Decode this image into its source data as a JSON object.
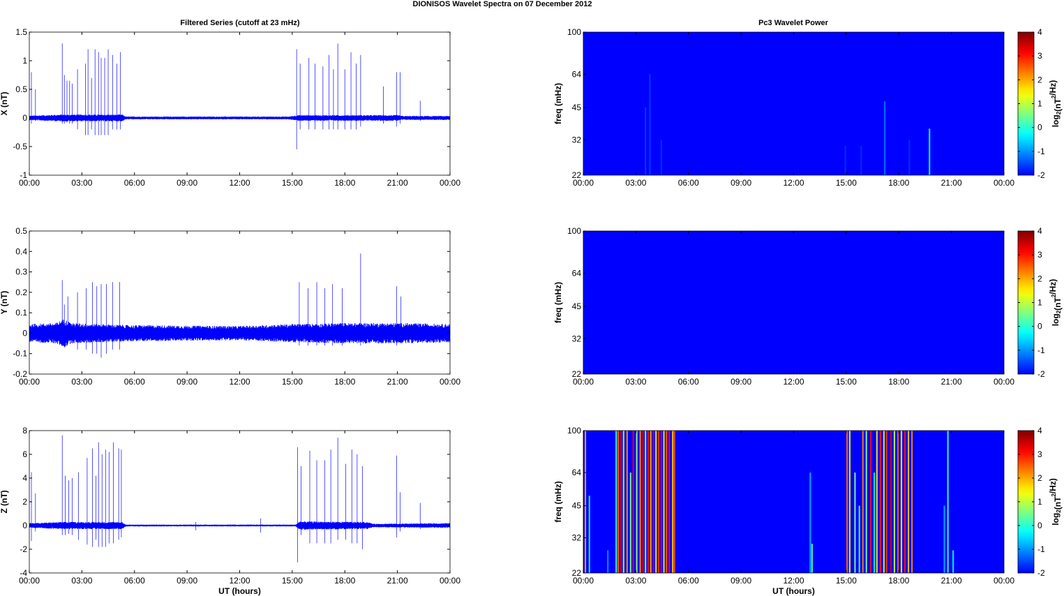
{
  "figure": {
    "title": "DIONISOS Wavelet Spectra on 07 December  2012",
    "left_column_title": "Filtered Series (cutoff at 23 mHz)",
    "right_column_title": "Pc3 Wavelet Power"
  },
  "chart_data": [
    {
      "type": "line",
      "name": "X-filtered-series",
      "title": "Filtered Series (cutoff at 23 mHz)",
      "xlabel": "",
      "ylabel": "X (nT)",
      "xlim": [
        "00:00",
        "24:00"
      ],
      "ylim": [
        -1,
        1.5
      ],
      "x_ticks": [
        "00:00",
        "03:00",
        "06:00",
        "09:00",
        "12:00",
        "15:00",
        "18:00",
        "21:00",
        "00:00"
      ],
      "y_ticks": [
        "-1",
        "-0.5",
        "0",
        "0.5",
        "1",
        "1.5"
      ],
      "y_tick_values": [
        -1,
        -0.5,
        0,
        0.5,
        1,
        1.5
      ],
      "color": "#0000ff",
      "noise_band": [
        {
          "t": 0.0,
          "amp": 0.04
        },
        {
          "t": 1.8,
          "amp": 0.06
        },
        {
          "t": 5.3,
          "amp": 0.06
        },
        {
          "t": 5.5,
          "amp": 0.025
        },
        {
          "t": 14.8,
          "amp": 0.025
        },
        {
          "t": 15.3,
          "amp": 0.05
        },
        {
          "t": 21.0,
          "amp": 0.05
        },
        {
          "t": 21.3,
          "amp": 0.035
        },
        {
          "t": 24.0,
          "amp": 0.035
        }
      ],
      "spikes": [
        {
          "t": 0.12,
          "hi": 0.8,
          "lo": -0.1
        },
        {
          "t": 0.35,
          "hi": 0.5,
          "lo": -0.05
        },
        {
          "t": 1.88,
          "hi": 1.3,
          "lo": -0.1
        },
        {
          "t": 2.0,
          "hi": 0.75,
          "lo": -0.1
        },
        {
          "t": 2.15,
          "hi": 0.65,
          "lo": -0.08
        },
        {
          "t": 2.3,
          "hi": 0.65,
          "lo": -0.1
        },
        {
          "t": 2.45,
          "hi": 0.6,
          "lo": -0.1
        },
        {
          "t": 2.75,
          "hi": 0.85,
          "lo": -0.2
        },
        {
          "t": 3.2,
          "hi": 0.95,
          "lo": -0.3
        },
        {
          "t": 3.35,
          "hi": 1.2,
          "lo": -0.3
        },
        {
          "t": 3.55,
          "hi": 0.7,
          "lo": -0.2
        },
        {
          "t": 3.75,
          "hi": 1.2,
          "lo": -0.3
        },
        {
          "t": 3.95,
          "hi": 1.15,
          "lo": -0.3
        },
        {
          "t": 4.1,
          "hi": 1.05,
          "lo": -0.3
        },
        {
          "t": 4.3,
          "hi": 1.05,
          "lo": -0.3
        },
        {
          "t": 4.5,
          "hi": 1.2,
          "lo": -0.3
        },
        {
          "t": 4.75,
          "hi": 1.1,
          "lo": -0.2
        },
        {
          "t": 5.0,
          "hi": 0.95,
          "lo": -0.2
        },
        {
          "t": 5.2,
          "hi": 1.15,
          "lo": -0.2
        },
        {
          "t": 15.25,
          "hi": 1.2,
          "lo": -0.55
        },
        {
          "t": 15.45,
          "hi": 0.95,
          "lo": -0.2
        },
        {
          "t": 15.95,
          "hi": 1.05,
          "lo": -0.2
        },
        {
          "t": 16.3,
          "hi": 0.95,
          "lo": -0.2
        },
        {
          "t": 16.75,
          "hi": 0.9,
          "lo": -0.2
        },
        {
          "t": 17.1,
          "hi": 1.1,
          "lo": -0.2
        },
        {
          "t": 17.35,
          "hi": 0.85,
          "lo": -0.2
        },
        {
          "t": 17.6,
          "hi": 1.3,
          "lo": -0.2
        },
        {
          "t": 18.0,
          "hi": 0.85,
          "lo": -0.2
        },
        {
          "t": 18.35,
          "hi": 1.15,
          "lo": -0.2
        },
        {
          "t": 18.65,
          "hi": 0.95,
          "lo": -0.2
        },
        {
          "t": 18.9,
          "hi": 1.1,
          "lo": -0.15
        },
        {
          "t": 20.2,
          "hi": 0.55,
          "lo": -0.1
        },
        {
          "t": 20.95,
          "hi": 0.8,
          "lo": -0.15
        },
        {
          "t": 21.15,
          "hi": 0.8,
          "lo": -0.1
        },
        {
          "t": 22.3,
          "hi": 0.3,
          "lo": -0.05
        }
      ]
    },
    {
      "type": "heatmap",
      "name": "X-wavelet-power",
      "title": "Pc3 Wavelet Power",
      "xlabel": "",
      "ylabel": "freq (mHz)",
      "xlim": [
        "00:00",
        "24:00"
      ],
      "ylim": [
        22,
        100
      ],
      "y_scale": "log",
      "x_ticks": [
        "00:00",
        "03:00",
        "06:00",
        "09:00",
        "12:00",
        "15:00",
        "18:00",
        "21:00",
        "00:00"
      ],
      "y_ticks": [
        "22",
        "32",
        "45",
        "64",
        "100"
      ],
      "y_tick_values": [
        22,
        32,
        45,
        64,
        100
      ],
      "background_level": -2,
      "colorbar": {
        "label": "log2(nT2/Hz)",
        "range": [
          -2,
          4
        ],
        "ticks": [
          -2,
          -1,
          0,
          1,
          2,
          3,
          4
        ]
      },
      "stripes": [
        {
          "t": 3.55,
          "f_top": 45,
          "level": -1.6
        },
        {
          "t": 3.8,
          "f_top": 64,
          "level": -1.6
        },
        {
          "t": 4.45,
          "f_top": 32,
          "level": -1.7
        },
        {
          "t": 14.95,
          "f_top": 30,
          "level": -1.7
        },
        {
          "t": 15.85,
          "f_top": 30,
          "level": -1.7
        },
        {
          "t": 17.2,
          "f_top": 48,
          "level": -1.2
        },
        {
          "t": 18.6,
          "f_top": 32,
          "level": -1.7
        },
        {
          "t": 19.75,
          "f_top": 36,
          "level": -0.2
        }
      ]
    },
    {
      "type": "line",
      "name": "Y-filtered-series",
      "title": "",
      "xlabel": "",
      "ylabel": "Y (nT)",
      "xlim": [
        "00:00",
        "24:00"
      ],
      "ylim": [
        -0.2,
        0.5
      ],
      "x_ticks": [
        "00:00",
        "03:00",
        "06:00",
        "09:00",
        "12:00",
        "15:00",
        "18:00",
        "21:00",
        "00:00"
      ],
      "y_ticks": [
        "-0.2",
        "-0.1",
        "0",
        "0.1",
        "0.2",
        "0.3",
        "0.4",
        "0.5"
      ],
      "y_tick_values": [
        -0.2,
        -0.1,
        0,
        0.1,
        0.2,
        0.3,
        0.4,
        0.5
      ],
      "color": "#0000ff",
      "noise_band": [
        {
          "t": 0.0,
          "amp": 0.045
        },
        {
          "t": 1.5,
          "amp": 0.05
        },
        {
          "t": 2.0,
          "amp": 0.07
        },
        {
          "t": 2.4,
          "amp": 0.05
        },
        {
          "t": 5.5,
          "amp": 0.04
        },
        {
          "t": 12.0,
          "amp": 0.035
        },
        {
          "t": 15.0,
          "amp": 0.045
        },
        {
          "t": 18.0,
          "amp": 0.05
        },
        {
          "t": 21.0,
          "amp": 0.05
        },
        {
          "t": 24.0,
          "amp": 0.045
        }
      ],
      "spikes": [
        {
          "t": 1.88,
          "hi": 0.26,
          "lo": -0.06
        },
        {
          "t": 2.0,
          "hi": 0.14,
          "lo": -0.05
        },
        {
          "t": 2.2,
          "hi": 0.18,
          "lo": -0.05
        },
        {
          "t": 2.75,
          "hi": 0.2,
          "lo": -0.08
        },
        {
          "t": 3.25,
          "hi": 0.22,
          "lo": -0.08
        },
        {
          "t": 3.6,
          "hi": 0.25,
          "lo": -0.1
        },
        {
          "t": 3.85,
          "hi": 0.23,
          "lo": -0.1
        },
        {
          "t": 4.1,
          "hi": 0.24,
          "lo": -0.12
        },
        {
          "t": 4.4,
          "hi": 0.24,
          "lo": -0.1
        },
        {
          "t": 4.75,
          "hi": 0.25,
          "lo": -0.08
        },
        {
          "t": 5.15,
          "hi": 0.25,
          "lo": -0.08
        },
        {
          "t": 15.4,
          "hi": 0.25,
          "lo": -0.06
        },
        {
          "t": 15.9,
          "hi": 0.22,
          "lo": -0.06
        },
        {
          "t": 16.4,
          "hi": 0.25,
          "lo": -0.06
        },
        {
          "t": 16.85,
          "hi": 0.22,
          "lo": -0.06
        },
        {
          "t": 17.3,
          "hi": 0.24,
          "lo": -0.06
        },
        {
          "t": 17.85,
          "hi": 0.22,
          "lo": -0.06
        },
        {
          "t": 18.9,
          "hi": 0.39,
          "lo": -0.06
        },
        {
          "t": 20.95,
          "hi": 0.23,
          "lo": -0.06
        },
        {
          "t": 21.2,
          "hi": 0.18,
          "lo": -0.05
        }
      ]
    },
    {
      "type": "heatmap",
      "name": "Y-wavelet-power",
      "title": "",
      "xlabel": "",
      "ylabel": "freq (mHz)",
      "xlim": [
        "00:00",
        "24:00"
      ],
      "ylim": [
        22,
        100
      ],
      "y_scale": "log",
      "x_ticks": [
        "00:00",
        "03:00",
        "06:00",
        "09:00",
        "12:00",
        "15:00",
        "18:00",
        "21:00",
        "00:00"
      ],
      "y_ticks": [
        "22",
        "32",
        "45",
        "64",
        "100"
      ],
      "y_tick_values": [
        22,
        32,
        45,
        64,
        100
      ],
      "background_level": -2,
      "colorbar": {
        "label": "log2(nT2/Hz)",
        "range": [
          -2,
          4
        ],
        "ticks": [
          -2,
          -1,
          0,
          1,
          2,
          3,
          4
        ]
      },
      "stripes": []
    },
    {
      "type": "line",
      "name": "Z-filtered-series",
      "title": "",
      "xlabel": "UT (hours)",
      "ylabel": "Z (nT)",
      "xlim": [
        "00:00",
        "24:00"
      ],
      "ylim": [
        -4,
        8
      ],
      "x_ticks": [
        "00:00",
        "03:00",
        "06:00",
        "09:00",
        "12:00",
        "15:00",
        "18:00",
        "21:00",
        "00:00"
      ],
      "y_ticks": [
        "-4",
        "-2",
        "0",
        "2",
        "4",
        "6",
        "8"
      ],
      "y_tick_values": [
        -4,
        -2,
        0,
        2,
        4,
        6,
        8
      ],
      "color": "#0000ff",
      "noise_band": [
        {
          "t": 0.0,
          "amp": 0.2
        },
        {
          "t": 1.8,
          "amp": 0.3
        },
        {
          "t": 5.3,
          "amp": 0.3
        },
        {
          "t": 5.5,
          "amp": 0.08
        },
        {
          "t": 15.2,
          "amp": 0.08
        },
        {
          "t": 15.4,
          "amp": 0.35
        },
        {
          "t": 19.3,
          "amp": 0.3
        },
        {
          "t": 19.6,
          "amp": 0.15
        },
        {
          "t": 24.0,
          "amp": 0.2
        }
      ],
      "spikes": [
        {
          "t": 0.12,
          "hi": 4.5,
          "lo": -1.3
        },
        {
          "t": 0.35,
          "hi": 2.7,
          "lo": -0.5
        },
        {
          "t": 1.88,
          "hi": 7.6,
          "lo": -0.8
        },
        {
          "t": 2.05,
          "hi": 4.2,
          "lo": -0.8
        },
        {
          "t": 2.25,
          "hi": 3.8,
          "lo": -0.7
        },
        {
          "t": 2.45,
          "hi": 4.0,
          "lo": -0.8
        },
        {
          "t": 2.8,
          "hi": 4.5,
          "lo": -1.2
        },
        {
          "t": 3.3,
          "hi": 5.7,
          "lo": -1.6
        },
        {
          "t": 3.6,
          "hi": 6.5,
          "lo": -1.8
        },
        {
          "t": 3.8,
          "hi": 4.2,
          "lo": -1.2
        },
        {
          "t": 3.95,
          "hi": 7.0,
          "lo": -1.8
        },
        {
          "t": 4.15,
          "hi": 6.0,
          "lo": -1.8
        },
        {
          "t": 4.35,
          "hi": 6.4,
          "lo": -1.8
        },
        {
          "t": 4.55,
          "hi": 6.2,
          "lo": -1.5
        },
        {
          "t": 4.8,
          "hi": 7.0,
          "lo": -1.5
        },
        {
          "t": 5.1,
          "hi": 6.5,
          "lo": -1.2
        },
        {
          "t": 5.25,
          "hi": 6.4,
          "lo": -1.0
        },
        {
          "t": 9.5,
          "hi": 0.3,
          "lo": -0.4
        },
        {
          "t": 13.2,
          "hi": 0.6,
          "lo": -0.6
        },
        {
          "t": 15.3,
          "hi": 6.6,
          "lo": -3.1
        },
        {
          "t": 15.5,
          "hi": 5.0,
          "lo": -0.8
        },
        {
          "t": 16.0,
          "hi": 6.3,
          "lo": -1.5
        },
        {
          "t": 16.4,
          "hi": 5.5,
          "lo": -1.5
        },
        {
          "t": 16.85,
          "hi": 5.5,
          "lo": -1.5
        },
        {
          "t": 17.2,
          "hi": 6.4,
          "lo": -1.5
        },
        {
          "t": 17.6,
          "hi": 7.4,
          "lo": -1.2
        },
        {
          "t": 18.05,
          "hi": 5.2,
          "lo": -1.2
        },
        {
          "t": 18.4,
          "hi": 6.4,
          "lo": -1.5
        },
        {
          "t": 18.7,
          "hi": 6.0,
          "lo": -1.5
        },
        {
          "t": 19.0,
          "hi": 5.0,
          "lo": -2.0
        },
        {
          "t": 20.95,
          "hi": 5.9,
          "lo": -1.0
        },
        {
          "t": 21.15,
          "hi": 2.8,
          "lo": -0.5
        },
        {
          "t": 22.3,
          "hi": 1.9,
          "lo": -0.3
        }
      ]
    },
    {
      "type": "heatmap",
      "name": "Z-wavelet-power",
      "title": "",
      "xlabel": "UT (hours)",
      "ylabel": "freq (mHz)",
      "xlim": [
        "00:00",
        "24:00"
      ],
      "ylim": [
        22,
        100
      ],
      "y_scale": "log",
      "x_ticks": [
        "00:00",
        "03:00",
        "06:00",
        "09:00",
        "12:00",
        "15:00",
        "18:00",
        "21:00",
        "00:00"
      ],
      "y_ticks": [
        "22",
        "32",
        "45",
        "64",
        "100"
      ],
      "y_tick_values": [
        22,
        32,
        45,
        64,
        100
      ],
      "background_level": -2,
      "colorbar": {
        "label": "log2(nT2/Hz)",
        "range": [
          -2,
          4
        ],
        "ticks": [
          -2,
          -1,
          0,
          1,
          2,
          3,
          4
        ]
      },
      "stripes": [
        {
          "t": 0.12,
          "f_top": 100,
          "level": 2.0
        },
        {
          "t": 0.35,
          "f_top": 50,
          "level": -0.2
        },
        {
          "t": 1.4,
          "f_top": 28,
          "level": -1.0
        },
        {
          "t": 1.88,
          "f_top": 100,
          "level": 0.3
        },
        {
          "t": 2.0,
          "f_top": 100,
          "level": 2.5
        },
        {
          "t": 2.15,
          "f_top": 100,
          "level": 3.3
        },
        {
          "t": 2.3,
          "f_top": 100,
          "level": 1.2
        },
        {
          "t": 2.5,
          "f_top": 100,
          "level": 2.2
        },
        {
          "t": 2.7,
          "f_top": 64,
          "level": 0.5
        },
        {
          "t": 2.85,
          "f_top": 100,
          "level": 3.2
        },
        {
          "t": 3.05,
          "f_top": 100,
          "level": 0.8
        },
        {
          "t": 3.25,
          "f_top": 100,
          "level": 2.2
        },
        {
          "t": 3.4,
          "f_top": 100,
          "level": 3.3
        },
        {
          "t": 3.55,
          "f_top": 100,
          "level": 1.0
        },
        {
          "t": 3.7,
          "f_top": 100,
          "level": 3.0
        },
        {
          "t": 3.85,
          "f_top": 100,
          "level": 2.0
        },
        {
          "t": 4.0,
          "f_top": 100,
          "level": 3.4
        },
        {
          "t": 4.15,
          "f_top": 100,
          "level": 1.2
        },
        {
          "t": 4.3,
          "f_top": 100,
          "level": 2.8
        },
        {
          "t": 4.45,
          "f_top": 100,
          "level": 3.3
        },
        {
          "t": 4.6,
          "f_top": 100,
          "level": 1.5
        },
        {
          "t": 4.75,
          "f_top": 100,
          "level": 2.5
        },
        {
          "t": 4.9,
          "f_top": 100,
          "level": 3.1
        },
        {
          "t": 5.1,
          "f_top": 100,
          "level": 1.8
        },
        {
          "t": 5.2,
          "f_top": 100,
          "level": 2.6
        },
        {
          "t": 12.95,
          "f_top": 64,
          "level": -0.8
        },
        {
          "t": 13.05,
          "f_top": 30,
          "level": 0.3
        },
        {
          "t": 15.05,
          "f_top": 100,
          "level": 2.4
        },
        {
          "t": 15.2,
          "f_top": 100,
          "level": 1.4
        },
        {
          "t": 15.5,
          "f_top": 64,
          "level": 0.6
        },
        {
          "t": 15.75,
          "f_top": 45,
          "level": 0.2
        },
        {
          "t": 15.95,
          "f_top": 100,
          "level": 2.3
        },
        {
          "t": 16.15,
          "f_top": 100,
          "level": 0.6
        },
        {
          "t": 16.4,
          "f_top": 100,
          "level": 3.1
        },
        {
          "t": 16.6,
          "f_top": 64,
          "level": -0.3
        },
        {
          "t": 16.75,
          "f_top": 100,
          "level": 1.6
        },
        {
          "t": 16.95,
          "f_top": 100,
          "level": 3.0
        },
        {
          "t": 17.15,
          "f_top": 100,
          "level": 1.2
        },
        {
          "t": 17.3,
          "f_top": 100,
          "level": 2.8
        },
        {
          "t": 17.55,
          "f_top": 100,
          "level": 3.4
        },
        {
          "t": 17.75,
          "f_top": 100,
          "level": 1.0
        },
        {
          "t": 17.95,
          "f_top": 100,
          "level": 2.5
        },
        {
          "t": 18.15,
          "f_top": 100,
          "level": 1.4
        },
        {
          "t": 18.35,
          "f_top": 100,
          "level": 3.0
        },
        {
          "t": 18.55,
          "f_top": 100,
          "level": 1.8
        },
        {
          "t": 18.75,
          "f_top": 100,
          "level": 2.2
        },
        {
          "t": 20.6,
          "f_top": 45,
          "level": -0.8
        },
        {
          "t": 20.8,
          "f_top": 100,
          "level": 0.2
        },
        {
          "t": 21.1,
          "f_top": 28,
          "level": -0.3
        }
      ]
    }
  ]
}
